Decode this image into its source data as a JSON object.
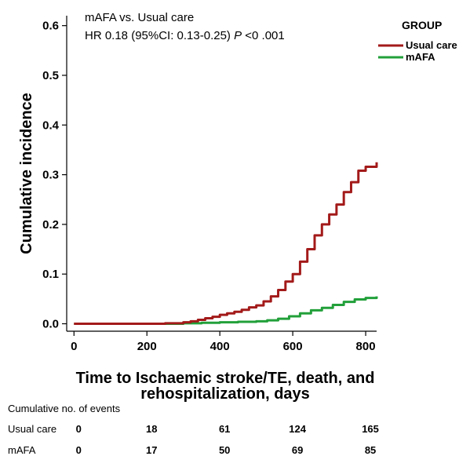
{
  "chart_data": {
    "type": "line",
    "annotation_line1": "mAFA vs. Usual care",
    "annotation_hr": "HR  0.18 (95%CI: 0.13-0.25) ",
    "annotation_p": "P",
    "annotation_pval": " <0 .001",
    "legend_title": "GROUP",
    "legend_placement": "top-right",
    "xlabel_line1": "Time to Ischaemic stroke/TE, death, and",
    "xlabel_line2": "rehospitalization, days",
    "ylabel": "Cumulative incidence",
    "xlim": [
      -20,
      830
    ],
    "ylim": [
      -0.015,
      0.62
    ],
    "xticks": [
      0,
      200,
      400,
      600,
      800
    ],
    "xtick_labels": [
      "0",
      "200",
      "400",
      "600",
      "800"
    ],
    "yticks": [
      0,
      0.1,
      0.2,
      0.3,
      0.4,
      0.5,
      0.6
    ],
    "ytick_labels": [
      "0.0",
      "0.1",
      "0.2",
      "0.3",
      "0.4",
      "0.5",
      "0.6"
    ],
    "grid": false,
    "series": [
      {
        "name": "Usual care",
        "color": "#a31a1a",
        "x": [
          0,
          100,
          200,
          250,
          300,
          320,
          340,
          360,
          380,
          400,
          420,
          440,
          460,
          480,
          500,
          520,
          540,
          560,
          580,
          600,
          620,
          640,
          660,
          680,
          700,
          720,
          740,
          760,
          780,
          800,
          830
        ],
        "y": [
          0,
          0,
          0,
          0.001,
          0.003,
          0.005,
          0.008,
          0.011,
          0.014,
          0.018,
          0.021,
          0.024,
          0.028,
          0.033,
          0.037,
          0.045,
          0.055,
          0.068,
          0.085,
          0.1,
          0.125,
          0.15,
          0.178,
          0.2,
          0.22,
          0.24,
          0.265,
          0.285,
          0.308,
          0.316,
          0.325
        ]
      },
      {
        "name": "mAFA",
        "color": "#22a03a",
        "x": [
          0,
          100,
          200,
          300,
          350,
          400,
          450,
          500,
          530,
          560,
          590,
          620,
          650,
          680,
          710,
          740,
          770,
          800,
          830
        ],
        "y": [
          0,
          0,
          0,
          0.001,
          0.002,
          0.003,
          0.004,
          0.005,
          0.007,
          0.01,
          0.015,
          0.021,
          0.027,
          0.032,
          0.038,
          0.044,
          0.049,
          0.052,
          0.055
        ]
      }
    ]
  },
  "risk_table": {
    "title": "Cumulative no. of events",
    "time_points": [
      0,
      200,
      400,
      600,
      800
    ],
    "rows": [
      {
        "label": "Usual care",
        "values": [
          "0",
          "18",
          "61",
          "124",
          "165"
        ]
      },
      {
        "label": "mAFA",
        "values": [
          "0",
          "17",
          "50",
          "69",
          "85"
        ]
      }
    ]
  }
}
